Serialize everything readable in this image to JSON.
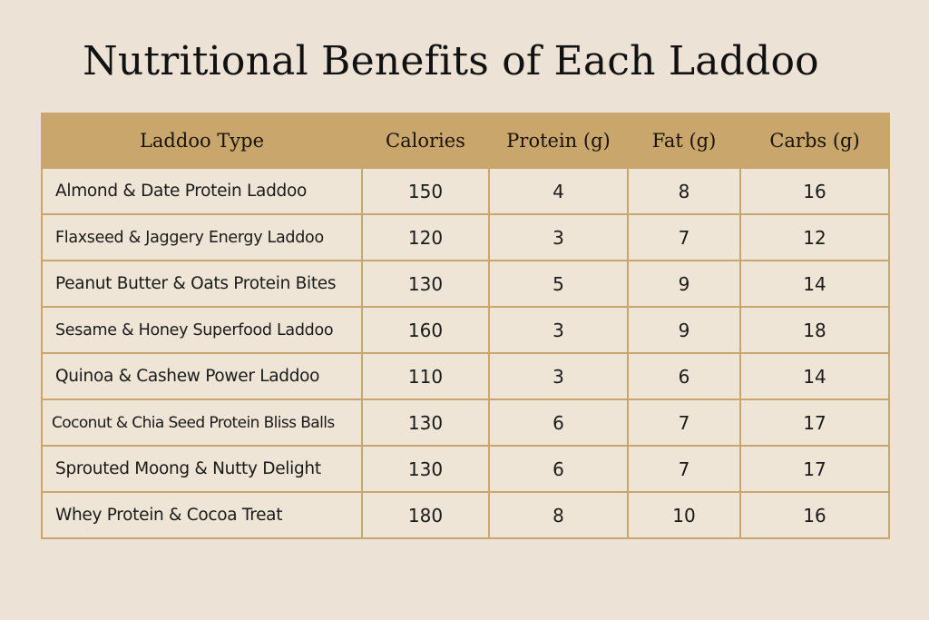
{
  "title": "Nutritional Benefits of Each Laddoo",
  "table": {
    "headers": [
      "Laddoo Type",
      "Calories",
      "Protein (g)",
      "Fat (g)",
      "Carbs (g)"
    ],
    "rows": [
      [
        "Almond & Date Protein Laddoo",
        "150",
        "4",
        "8",
        "16"
      ],
      [
        "Flaxseed & Jaggery Energy Laddoo",
        "120",
        "3",
        "7",
        "12"
      ],
      [
        "Peanut Butter & Oats Protein Bites",
        "130",
        "5",
        "9",
        "14"
      ],
      [
        "Sesame & Honey Superfood Laddoo",
        "160",
        "3",
        "9",
        "18"
      ],
      [
        "Quinoa & Cashew Power Laddoo",
        "110",
        "3",
        "6",
        "14"
      ],
      [
        "Coconut & Chia Seed Protein Bliss Balls",
        "130",
        "6",
        "7",
        "17"
      ],
      [
        "Sprouted Moong & Nutty Delight",
        "130",
        "6",
        "7",
        "17"
      ],
      [
        "Whey Protein & Cocoa Treat",
        "180",
        "8",
        "10",
        "16"
      ]
    ]
  },
  "colors": {
    "background": "#ece3d6",
    "header_fill": "#c9a66b",
    "border": "#c8a66e",
    "cell_fill": "#efe5d6"
  }
}
